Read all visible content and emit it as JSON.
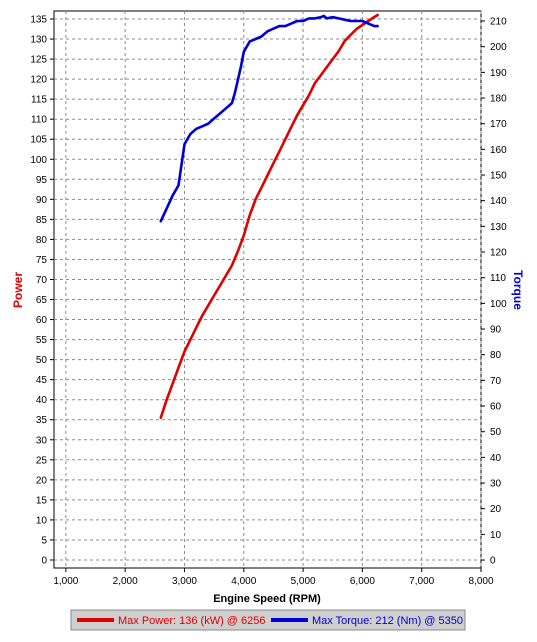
{
  "chart_data": {
    "type": "line",
    "xlabel": "Engine Speed (RPM)",
    "ylabel_left": "Power",
    "ylabel_right": "Torque",
    "xlim": [
      800,
      8000
    ],
    "ylim_left": [
      -2,
      137
    ],
    "ylim_right": [
      -3.1,
      213.9
    ],
    "x_ticks": [
      "1,000",
      "2,000",
      "3,000",
      "4,000",
      "5,000",
      "6,000",
      "7,000",
      "8,000"
    ],
    "y_ticks_left": [
      "0",
      "5",
      "10",
      "15",
      "20",
      "25",
      "30",
      "35",
      "40",
      "45",
      "50",
      "55",
      "60",
      "65",
      "70",
      "75",
      "80",
      "85",
      "90",
      "95",
      "100",
      "105",
      "110",
      "115",
      "120",
      "125",
      "130",
      "135"
    ],
    "y_ticks_right": [
      "0",
      "10",
      "20",
      "30",
      "40",
      "50",
      "60",
      "70",
      "80",
      "90",
      "100",
      "110",
      "120",
      "130",
      "140",
      "150",
      "160",
      "170",
      "180",
      "190",
      "200",
      "210"
    ],
    "grid": true,
    "legend_position": "bottom",
    "colors": {
      "power": "#e00000",
      "torque": "#0000d8",
      "grid": "#8c8c8c",
      "legend_bg": "#cfcfcf"
    },
    "series": [
      {
        "name": "Max Power: 136 (kW) @ 6256",
        "axis": "left",
        "x": [
          2600,
          2700,
          2800,
          2900,
          3000,
          3100,
          3200,
          3300,
          3400,
          3500,
          3600,
          3700,
          3800,
          3900,
          4000,
          4100,
          4200,
          4300,
          4400,
          4500,
          4600,
          4700,
          4800,
          4900,
          5000,
          5100,
          5200,
          5300,
          5400,
          5500,
          5600,
          5700,
          5800,
          5900,
          6000,
          6100,
          6200,
          6256
        ],
        "y": [
          35.5,
          40,
          44,
          48,
          52,
          55,
          58,
          61,
          63.5,
          66,
          68.5,
          71,
          73.5,
          77,
          81,
          86,
          90,
          93,
          96,
          99,
          102,
          105,
          108,
          111,
          113.5,
          116,
          119,
          121,
          123,
          125,
          127,
          129.5,
          131,
          132.5,
          133.5,
          134.5,
          135.5,
          136
        ]
      },
      {
        "name": "Max Torque: 212 (Nm) @ 5350",
        "axis": "right",
        "x": [
          2600,
          2700,
          2800,
          2900,
          3000,
          3100,
          3200,
          3300,
          3400,
          3500,
          3600,
          3700,
          3800,
          3850,
          3950,
          4000,
          4100,
          4200,
          4300,
          4400,
          4500,
          4600,
          4700,
          4800,
          4900,
          5000,
          5100,
          5200,
          5300,
          5350,
          5400,
          5500,
          5600,
          5700,
          5800,
          5900,
          6000,
          6100,
          6200,
          6256
        ],
        "y": [
          132,
          137,
          142,
          146,
          162,
          166,
          168,
          169,
          170,
          172,
          174,
          176,
          178,
          182,
          192,
          198,
          202,
          203,
          204,
          206,
          207,
          208,
          208,
          209,
          210,
          210,
          211,
          211,
          211.5,
          212,
          211,
          211.5,
          211,
          210.5,
          210,
          210,
          210,
          209,
          208,
          208
        ]
      }
    ]
  }
}
